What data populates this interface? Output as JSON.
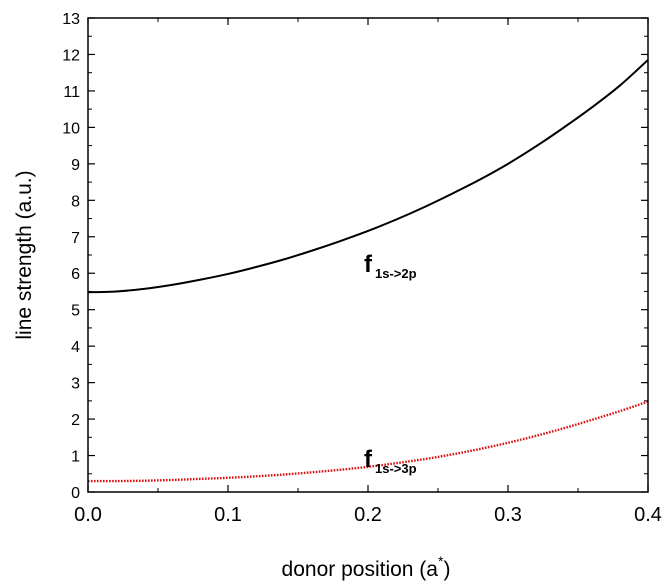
{
  "chart_data": {
    "type": "line",
    "xlabel_main": "donor position (a",
    "xlabel_sup": "*",
    "xlabel_close": ")",
    "ylabel": "line strength (a.u.)",
    "xlim": [
      0.0,
      0.4
    ],
    "ylim": [
      0,
      13
    ],
    "x_ticks": [
      "0.0",
      "0.1",
      "0.2",
      "0.3",
      "0.4"
    ],
    "y_ticks": [
      "0",
      "1",
      "2",
      "3",
      "4",
      "5",
      "6",
      "7",
      "8",
      "9",
      "10",
      "11",
      "12",
      "13"
    ],
    "grid": false,
    "series": [
      {
        "name": "f 1s->2p",
        "color": "#000000",
        "style": "solid",
        "x": [
          0.0,
          0.02,
          0.04,
          0.06,
          0.08,
          0.1,
          0.12,
          0.14,
          0.16,
          0.18,
          0.2,
          0.22,
          0.24,
          0.26,
          0.28,
          0.3,
          0.32,
          0.34,
          0.36,
          0.38,
          0.4
        ],
        "y": [
          5.48,
          5.5,
          5.57,
          5.68,
          5.82,
          5.98,
          6.17,
          6.38,
          6.62,
          6.88,
          7.16,
          7.47,
          7.81,
          8.18,
          8.57,
          9.0,
          9.48,
          10.0,
          10.55,
          11.15,
          11.85
        ]
      },
      {
        "name": "f 1s->3p",
        "color": "#dd1111",
        "style": "dotted",
        "x": [
          0.0,
          0.02,
          0.04,
          0.06,
          0.08,
          0.1,
          0.12,
          0.14,
          0.16,
          0.18,
          0.2,
          0.22,
          0.24,
          0.26,
          0.28,
          0.3,
          0.32,
          0.34,
          0.36,
          0.38,
          0.4
        ],
        "y": [
          0.3,
          0.3,
          0.31,
          0.33,
          0.36,
          0.39,
          0.43,
          0.48,
          0.54,
          0.61,
          0.69,
          0.79,
          0.9,
          1.03,
          1.18,
          1.35,
          1.54,
          1.75,
          1.98,
          2.22,
          2.48
        ]
      }
    ],
    "annotations": [
      {
        "main": "f",
        "sub": "1s->2p",
        "x": 0.2,
        "y": 6.25
      },
      {
        "main": "f",
        "sub": "1s->3p",
        "x": 0.2,
        "y": 0.9
      }
    ]
  }
}
